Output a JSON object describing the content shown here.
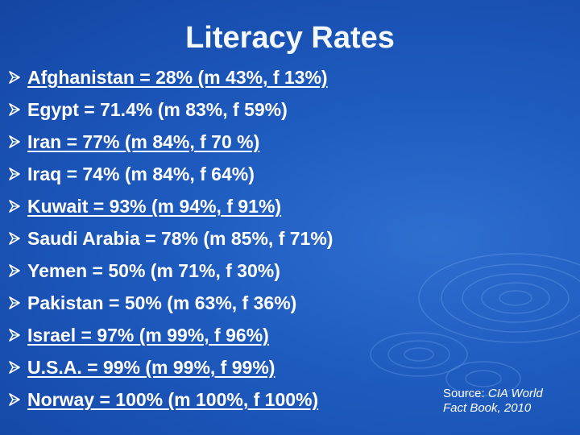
{
  "slide": {
    "title": "Literacy Rates"
  },
  "bullets": [
    {
      "text": "Afghanistan = 28% (m 43%, f 13%)",
      "underlined": true
    },
    {
      "text": "Egypt = 71.4% (m 83%, f 59%)",
      "underlined": false
    },
    {
      "text": "Iran = 77% (m 84%, f 70 %)",
      "underlined": true
    },
    {
      "text": "Iraq = 74% (m 84%, f 64%)",
      "underlined": false
    },
    {
      "text": "Kuwait = 93% (m 94%, f 91%)",
      "underlined": true
    },
    {
      "text": "Saudi Arabia = 78% (m 85%, f 71%)",
      "underlined": false
    },
    {
      "text": "Yemen = 50% (m 71%, f 30%)",
      "underlined": false
    },
    {
      "text": "Pakistan = 50% (m 63%, f 36%)",
      "underlined": false
    },
    {
      "text": "Israel = 97% (m 99%, f 96%)",
      "underlined": true
    },
    {
      "text": "U.S.A. = 99% (m 99%, f 99%)",
      "underlined": true
    },
    {
      "text": "Norway = 100% (m 100%, f 100%)",
      "underlined": true
    }
  ],
  "source": {
    "prefix": "Source: ",
    "name_line1": "CIA World",
    "name_line2": "Fact Book, 2010"
  },
  "icons": {
    "bullet": "arrow-bullet-icon"
  },
  "colors": {
    "background": "#1f5cc0",
    "text": "#ffffff"
  }
}
